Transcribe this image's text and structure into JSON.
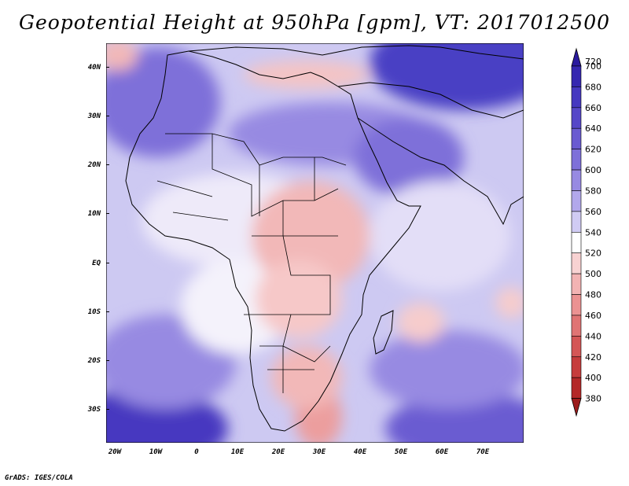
{
  "title": "Geopotential Height at 950hPa [gpm], VT: 2017012500",
  "credit": "GrADS: IGES/COLA",
  "lat_labels": [
    "40N",
    "30N",
    "20N",
    "10N",
    "EQ",
    "10S",
    "20S",
    "30S"
  ],
  "lon_labels": [
    "20W",
    "10W",
    "0",
    "10E",
    "20E",
    "30E",
    "40E",
    "50E",
    "60E",
    "70E"
  ],
  "colorbar": {
    "levels": [
      "720",
      "700",
      "680",
      "660",
      "640",
      "620",
      "600",
      "580",
      "560",
      "540",
      "520",
      "500",
      "480",
      "460",
      "440",
      "420",
      "400",
      "380"
    ],
    "colors": [
      "#2a1a9e",
      "#3527b0",
      "#4538c0",
      "#5647c8",
      "#6a5bd1",
      "#7e70d9",
      "#978ae2",
      "#b2a8eb",
      "#d0cbf3",
      "#ffffff",
      "#f8d2d2",
      "#f2b3b3",
      "#eb9292",
      "#e07474",
      "#d45656",
      "#c63c3c",
      "#b42828",
      "#9c1c1c"
    ]
  },
  "map": {
    "ocean_base": "#c8c4f0",
    "land_low": "#f6d0d0"
  }
}
